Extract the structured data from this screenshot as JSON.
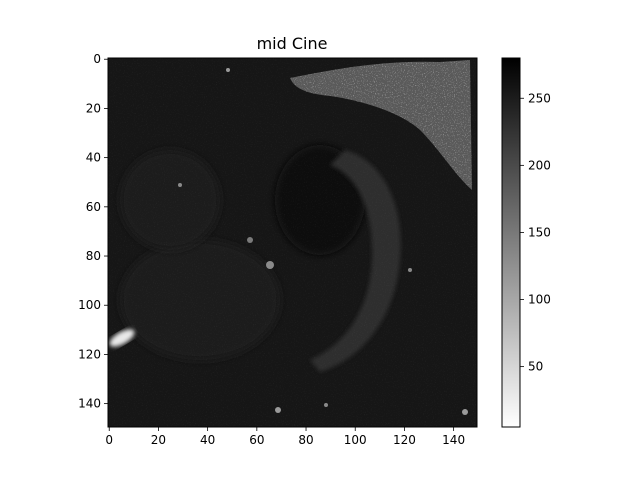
{
  "figure": {
    "title": "mid Cine"
  },
  "image_axes": {
    "x_ticks": [
      "0",
      "20",
      "40",
      "60",
      "80",
      "100",
      "120",
      "140"
    ],
    "y_ticks": [
      "0",
      "20",
      "40",
      "60",
      "80",
      "100",
      "120",
      "140"
    ],
    "x_range": [
      0,
      150
    ],
    "y_range": [
      0,
      150
    ],
    "y_inverted": true
  },
  "colorbar": {
    "ticks": [
      "50",
      "100",
      "150",
      "200",
      "250"
    ],
    "range": [
      5,
      280
    ],
    "colormap": "gray_r",
    "low_color": "#ffffff",
    "high_color": "#000000"
  },
  "content": {
    "subject": "cardiac MRI mid-ventricular short-axis slice"
  }
}
